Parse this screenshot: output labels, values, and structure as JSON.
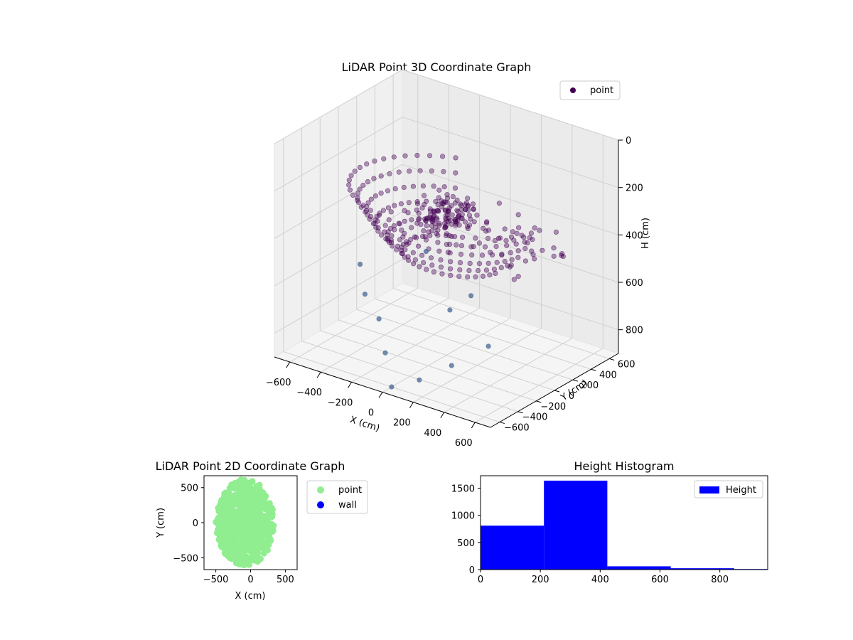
{
  "figure": {
    "colors": {
      "point3d": "#440154",
      "point3d_far": "#3b5e8c",
      "point2d": "#90ee90",
      "wall": "#0000ff",
      "hist": "#0000ff",
      "pane": "#f2f2f2",
      "grid": "#d0d0d0"
    }
  },
  "chart_data": [
    {
      "type": "scatter",
      "dimensions": 3,
      "title": "LiDAR Point 3D Coordinate Graph",
      "xlabel": "X (cm)",
      "ylabel": "Y (cm)",
      "zlabel": "H (cm)",
      "xlim": [
        -700,
        700
      ],
      "ylim": [
        -700,
        700
      ],
      "zlim": [
        900,
        0
      ],
      "xticks": [
        "−600",
        "−400",
        "−200",
        "0",
        "200",
        "400",
        "600"
      ],
      "yticks": [
        "−600",
        "−400",
        "−200",
        "0",
        "200",
        "400",
        "600"
      ],
      "zticks": [
        "0",
        "200",
        "400",
        "600",
        "800"
      ],
      "grid": true,
      "legend": {
        "position": "top-right",
        "entries": [
          "point"
        ]
      },
      "description_rings": [
        {
          "radius": 600,
          "height": 250,
          "count": 34
        },
        {
          "radius": 550,
          "height": 300,
          "count": 34
        },
        {
          "radius": 500,
          "height": 350,
          "count": 34
        },
        {
          "radius": 450,
          "height": 400,
          "count": 34
        },
        {
          "radius": 380,
          "height": 450,
          "count": 30
        },
        {
          "radius": 300,
          "height": 500,
          "count": 26
        }
      ],
      "cluster": {
        "x_range": [
          -150,
          150
        ],
        "y_range": [
          -150,
          150
        ],
        "height_range": [
          250,
          350
        ],
        "count": 90
      },
      "scattered_points": [
        [
          -200,
          -400,
          700
        ],
        [
          -100,
          -500,
          800
        ],
        [
          0,
          -600,
          900
        ],
        [
          150,
          -550,
          850
        ],
        [
          300,
          -450,
          780
        ],
        [
          450,
          -300,
          700
        ],
        [
          -350,
          -300,
          650
        ],
        [
          200,
          -300,
          600
        ],
        [
          -500,
          -100,
          600
        ],
        [
          100,
          100,
          650
        ],
        [
          -250,
          200,
          560
        ],
        [
          350,
          150,
          540
        ]
      ]
    },
    {
      "type": "scatter",
      "dimensions": 2,
      "title": "LiDAR Point 2D Coordinate Graph",
      "xlabel": "X (cm)",
      "ylabel": "Y (cm)",
      "xlim": [
        -670,
        670
      ],
      "ylim": [
        -670,
        670
      ],
      "xticks": [
        -500,
        0,
        500
      ],
      "yticks": [
        -500,
        0,
        500
      ],
      "xticklabels": [
        "−500",
        "0",
        "500"
      ],
      "yticklabels": [
        "−500",
        "0",
        "500"
      ],
      "legend": {
        "position": "outside-right",
        "entries": [
          "point",
          "wall"
        ]
      },
      "ellipse": {
        "cx": -80,
        "cy": 0,
        "rx": 420,
        "ry": 620,
        "count": 700
      }
    },
    {
      "type": "bar",
      "subtype": "histogram",
      "title": "Height Histogram",
      "xlim": [
        0,
        960
      ],
      "ylim": [
        0,
        1730
      ],
      "xticks": [
        0,
        200,
        400,
        600,
        800
      ],
      "yticks": [
        0,
        500,
        1000,
        1500
      ],
      "bin_edges": [
        0,
        212,
        424,
        636,
        848,
        960
      ],
      "values": [
        810,
        1640,
        60,
        25,
        10
      ],
      "legend": {
        "position": "top-right",
        "entries": [
          "Height"
        ]
      }
    }
  ]
}
